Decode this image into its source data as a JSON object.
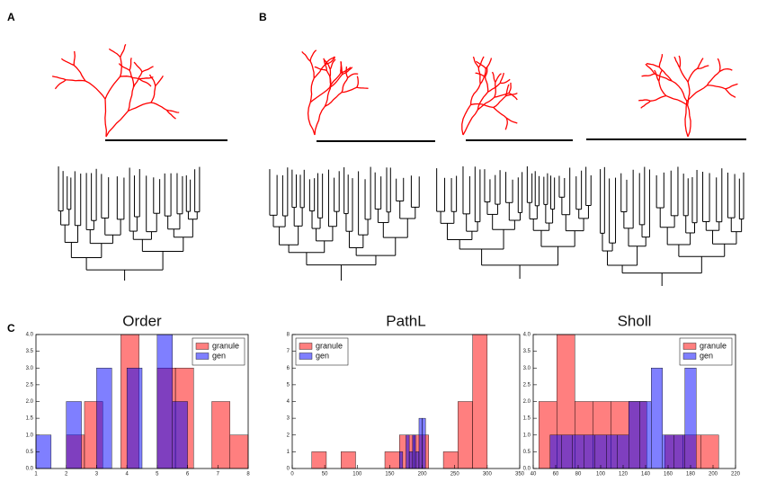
{
  "panels": [
    "A",
    "B",
    "C"
  ],
  "chart_data": [
    {
      "type": "histogram",
      "title": "Order",
      "legend": "upper right",
      "xlim": [
        1,
        8
      ],
      "xticks": [
        1,
        2,
        3,
        4,
        5,
        6,
        7,
        8
      ],
      "ylim": [
        0,
        4
      ],
      "yticks": [
        {
          "value": 0,
          "label": "0.0"
        },
        {
          "value": 0.5,
          "label": "0.5"
        },
        {
          "value": 1,
          "label": "1.0"
        },
        {
          "value": 1.5,
          "label": "1.5"
        },
        {
          "value": 2,
          "label": "2.0"
        },
        {
          "value": 2.5,
          "label": "2.5"
        },
        {
          "value": 3,
          "label": "3.0"
        },
        {
          "value": 3.5,
          "label": "3.5"
        },
        {
          "value": 4,
          "label": "4.0"
        }
      ],
      "series": [
        {
          "name": "granule",
          "color": "#ff0000",
          "bins": [
            2,
            2.6,
            3.2,
            3.8,
            4.4,
            5.0,
            5.6,
            6.2,
            6.8,
            7.4,
            8.0
          ],
          "values": [
            1,
            2,
            0,
            4,
            0,
            3,
            3,
            0,
            2,
            1
          ]
        },
        {
          "name": "gen",
          "color": "#0000ff",
          "bins": [
            1,
            1.5,
            2,
            2.5,
            3,
            3.5,
            4,
            4.5,
            5,
            5.5,
            6
          ],
          "values": [
            1,
            0,
            2,
            0,
            3,
            0,
            3,
            0,
            4,
            2
          ]
        }
      ]
    },
    {
      "type": "histogram",
      "title": "PathL",
      "legend": "upper left",
      "xlim": [
        0,
        350
      ],
      "xticks": [
        0,
        50,
        100,
        150,
        200,
        250,
        300,
        350
      ],
      "ylim": [
        0,
        8
      ],
      "yticks": [
        0,
        1,
        2,
        3,
        4,
        5,
        6,
        7,
        8
      ],
      "series": [
        {
          "name": "granule",
          "color": "#ff0000",
          "bins": [
            30,
            52.5,
            75,
            97.5,
            120,
            142.5,
            165,
            187.5,
            210,
            232.5,
            255,
            277.5,
            300
          ],
          "values": [
            1,
            0,
            1,
            0,
            0,
            1,
            2,
            2,
            0,
            1,
            4,
            8
          ]
        },
        {
          "name": "gen",
          "color": "#0000ff",
          "bins": [
            165,
            170,
            175,
            180,
            185,
            190,
            195,
            200,
            205
          ],
          "values": [
            1,
            0,
            2,
            1,
            2,
            1,
            3,
            3
          ]
        }
      ]
    },
    {
      "type": "histogram",
      "title": "Sholl",
      "legend": "upper right",
      "xlim": [
        40,
        220
      ],
      "xticks": [
        40,
        60,
        80,
        100,
        120,
        140,
        160,
        180,
        200,
        220
      ],
      "ylim": [
        0,
        4
      ],
      "yticks": [
        {
          "value": 0,
          "label": "0.0"
        },
        {
          "value": 0.5,
          "label": "0.5"
        },
        {
          "value": 1,
          "label": "1.0"
        },
        {
          "value": 1.5,
          "label": "1.5"
        },
        {
          "value": 2,
          "label": "2.0"
        },
        {
          "value": 2.5,
          "label": "2.5"
        },
        {
          "value": 3,
          "label": "3.0"
        },
        {
          "value": 3.5,
          "label": "3.5"
        },
        {
          "value": 4,
          "label": "4.0"
        }
      ],
      "series": [
        {
          "name": "granule",
          "color": "#ff0000",
          "bins": [
            45,
            61,
            77,
            93,
            109,
            125,
            141,
            157,
            173,
            189,
            205
          ],
          "values": [
            2,
            4,
            2,
            2,
            2,
            2,
            0,
            1,
            1,
            1
          ]
        },
        {
          "name": "gen",
          "color": "#0000ff",
          "bins": [
            55,
            65,
            75,
            85,
            95,
            105,
            115,
            125,
            135,
            145,
            155,
            165,
            175,
            185
          ],
          "values": [
            1,
            1,
            1,
            1,
            1,
            1,
            1,
            2,
            2,
            3,
            1,
            1,
            3
          ]
        }
      ]
    }
  ]
}
